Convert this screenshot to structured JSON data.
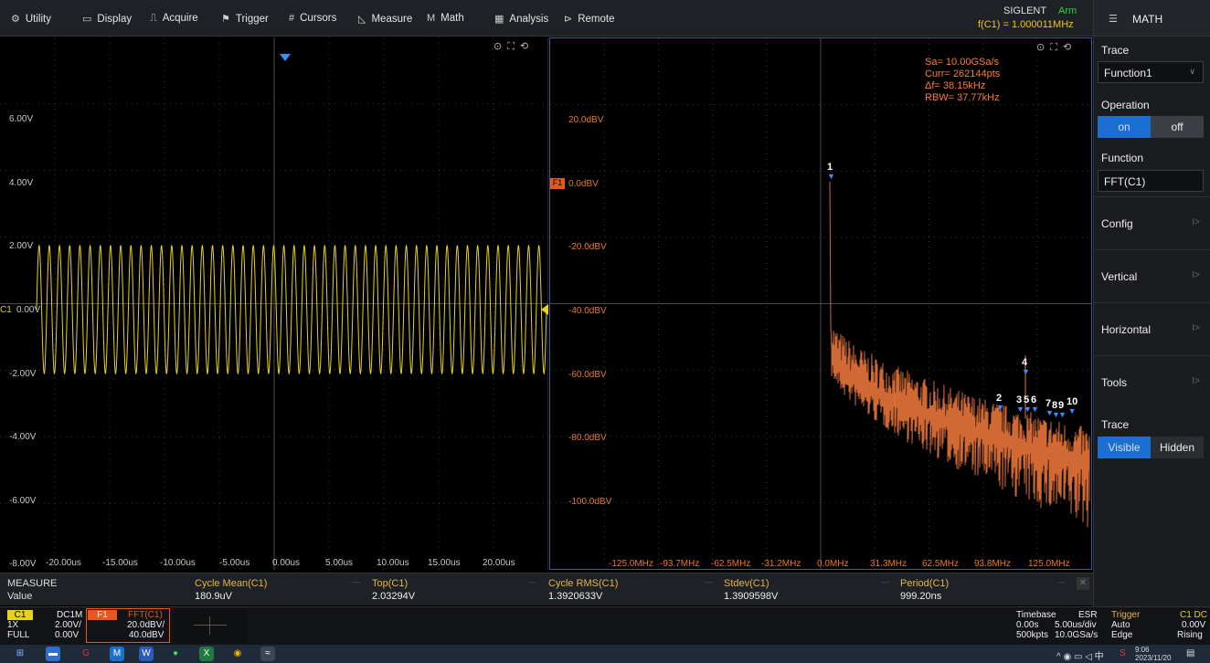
{
  "menu": [
    {
      "icon": "⚙",
      "label": "Utility"
    },
    {
      "icon": "▭",
      "label": "Display"
    },
    {
      "icon": "⎍",
      "label": "Acquire"
    },
    {
      "icon": "⚑",
      "label": "Trigger"
    },
    {
      "icon": "#",
      "label": "Cursors"
    },
    {
      "icon": "◺",
      "label": "Measure"
    },
    {
      "icon": "M",
      "label": "Math"
    },
    {
      "icon": "▦",
      "label": "Analysis"
    },
    {
      "icon": "⊳",
      "label": "Remote"
    }
  ],
  "status": {
    "brand": "SIGLENT",
    "run_state": "Arm",
    "frequency": "f(C1) = 1.000011MHz"
  },
  "panel": {
    "title": "MATH",
    "trace_label": "Trace",
    "trace_value": "Function1",
    "operation_label": "Operation",
    "operation_on": "on",
    "operation_off": "off",
    "function_label": "Function",
    "function_value": "FFT(C1)",
    "sections": [
      "Config",
      "Vertical",
      "Horizontal",
      "Tools"
    ],
    "trace_vis_label": "Trace",
    "visible": "Visible",
    "hidden": "Hidden"
  },
  "time_pane": {
    "y_labels": [
      "6.00V",
      "4.00V",
      "2.00V",
      "0.00V",
      "-2.00V",
      "-4.00V",
      "-6.00V",
      "-8.00V"
    ],
    "channel_marker": "C1",
    "x_labels": [
      "-20.00us",
      "-15.00us",
      "-10.00us",
      "-5.00us",
      "0.00us",
      "5.00us",
      "10.00us",
      "15.00us",
      "20.00us"
    ],
    "signal": {
      "frequency_mhz": 1.000011,
      "amplitude_v": 2.0,
      "cycles_on_screen": 50
    }
  },
  "fft_pane": {
    "info": [
      "Sa= 10.00GSa/s",
      "Curr= 262144pts",
      "Δf= 38.15kHz",
      "RBW= 37.77kHz"
    ],
    "y_labels": [
      "20.0dBV",
      "0.0dBV",
      "-20.0dBV",
      "-40.0dBV",
      "-60.0dBV",
      "-80.0dBV",
      "-100.0dBV"
    ],
    "channel_marker": "F1",
    "x_labels": [
      "-125.0MHz",
      "-93.7MHz",
      "-62.5MHz",
      "-31.2MHz",
      "0.0MHz",
      "31.3MHz",
      "62.5MHz",
      "93.8MHz",
      "125.0MHz"
    ],
    "peak_markers": [
      "1",
      "2",
      "3",
      "5",
      "6",
      "4",
      "7",
      "8",
      "9",
      "10"
    ]
  },
  "measure": {
    "header": "MEASURE",
    "row_label": "Value",
    "items": [
      {
        "name": "Cycle Mean(C1)",
        "value": "180.9uV"
      },
      {
        "name": "Top(C1)",
        "value": "2.03294V"
      },
      {
        "name": "Cycle RMS(C1)",
        "value": "1.3920633V"
      },
      {
        "name": "Stdev(C1)",
        "value": "1.3909598V"
      },
      {
        "name": "Period(C1)",
        "value": "999.20ns"
      }
    ]
  },
  "channels": {
    "c1": {
      "tag": "C1",
      "coupling": "DC1M",
      "probe": "1X",
      "scale": "2.00V/",
      "bw": "FULL",
      "offset": "0.00V"
    },
    "f1": {
      "tag": "F1",
      "func": "FFT(C1)",
      "scale": "20.0dBV/",
      "offset": "40.0dBV"
    }
  },
  "timebase": {
    "label": "Timebase",
    "delay": "0.00s",
    "scale": "5.00us/div",
    "points": "500kpts",
    "rate": "10.0GSa/s",
    "mode": "ESR"
  },
  "trigger": {
    "label": "Trigger",
    "mode": "Auto",
    "type": "Edge",
    "source": "C1 DC",
    "level": "0.00V",
    "slope": "Rising"
  },
  "taskbar": {
    "time": "9:06",
    "date": "2023/11/20"
  },
  "colors": {
    "ch1": "#e6d21a",
    "fft": "#e57a2b",
    "accent": "#1a6fd0"
  }
}
